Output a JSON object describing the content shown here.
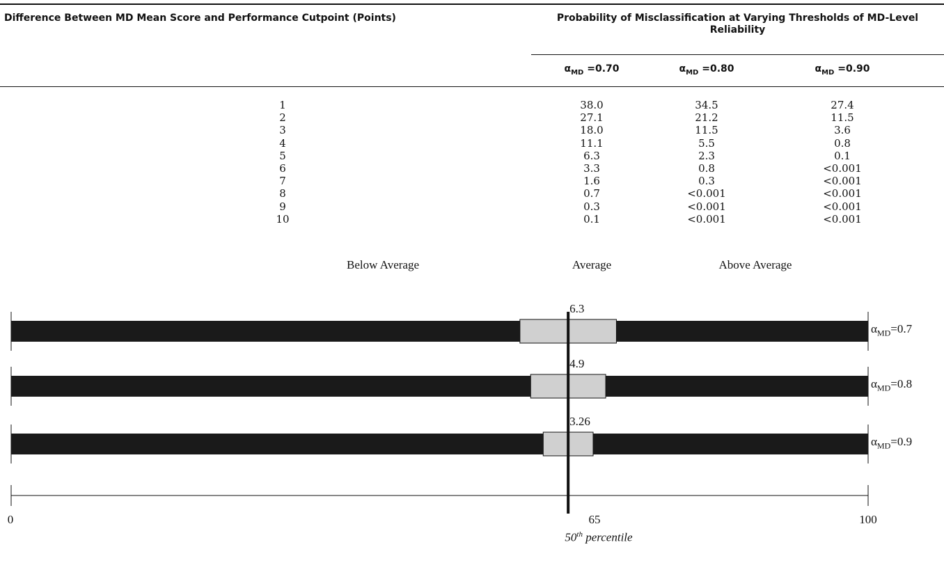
{
  "table": {
    "header_left": "Difference Between MD Mean Score and Performance Cutpoint (Points)",
    "header_right": "Probability of Misclassification at Varying Thresholds of MD-Level Reliability",
    "columns": [
      {
        "symbol": "α",
        "sub": "MD",
        "suffix": " =0.70"
      },
      {
        "symbol": "α",
        "sub": "MD",
        "suffix": " =0.80"
      },
      {
        "symbol": "α",
        "sub": "MD",
        "suffix": " =0.90"
      }
    ],
    "rows": [
      {
        "diff": "1",
        "v": [
          "38.0",
          "34.5",
          "27.4"
        ]
      },
      {
        "diff": "2",
        "v": [
          "27.1",
          "21.2",
          "11.5"
        ]
      },
      {
        "diff": "3",
        "v": [
          "18.0",
          "11.5",
          "3.6"
        ]
      },
      {
        "diff": "4",
        "v": [
          "11.1",
          "5.5",
          "0.8"
        ]
      },
      {
        "diff": "5",
        "v": [
          "6.3",
          "2.3",
          "0.1"
        ]
      },
      {
        "diff": "6",
        "v": [
          "3.3",
          "0.8",
          "<0.001"
        ]
      },
      {
        "diff": "7",
        "v": [
          "1.6",
          "0.3",
          "<0.001"
        ]
      },
      {
        "diff": "8",
        "v": [
          "0.7",
          "<0.001",
          "<0.001"
        ]
      },
      {
        "diff": "9",
        "v": [
          "0.3",
          "<0.001",
          "<0.001"
        ]
      },
      {
        "diff": "10",
        "v": [
          "0.1",
          "<0.001",
          "<0.001"
        ]
      }
    ]
  },
  "figure": {
    "categories": [
      "Below Average",
      "Average",
      "Above Average"
    ],
    "axis_ticks": [
      "0",
      "65",
      "100"
    ],
    "percentile_base": "50",
    "percentile_sup": "th",
    "percentile_word": " percentile",
    "bars": [
      {
        "half_width": "6.3",
        "label_symbol": "α",
        "label_sub": "MD",
        "label_suffix": "=0.7"
      },
      {
        "half_width": "4.9",
        "label_symbol": "α",
        "label_sub": "MD",
        "label_suffix": "=0.8"
      },
      {
        "half_width": "3.26",
        "label_symbol": "α",
        "label_sub": "MD",
        "label_suffix": "=0.9"
      }
    ],
    "colors": {
      "bar": "#1a1a1a",
      "band": "#d0d0d0"
    }
  }
}
